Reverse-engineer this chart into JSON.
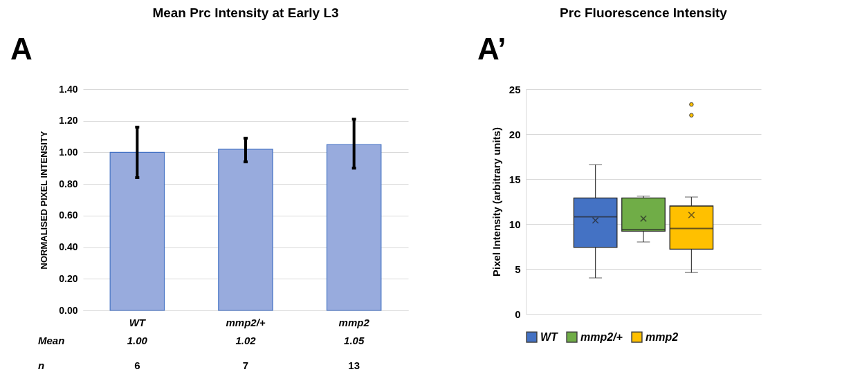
{
  "chart_data": [
    {
      "type": "bar",
      "title": "Mean Prc Intensity at Early L3",
      "ylabel": "NORMALISED PIXEL INTENSITY",
      "categories": [
        "WT",
        "mmp2/+",
        "mmp2"
      ],
      "values": [
        1.0,
        1.02,
        1.05
      ],
      "color": "#98abdd",
      "errors": [
        0.16,
        [
          0.94,
          1.09
        ],
        [
          0.9,
          1.21
        ]
      ],
      "value_labels": [
        "1.00",
        "1.02",
        "1.05"
      ],
      "ylim": [
        0,
        1.4
      ],
      "yticks": [
        {
          "value": 0,
          "label": "0.00"
        },
        {
          "value": 0.2,
          "label": "0.20"
        },
        {
          "value": 0.4,
          "label": "0.40"
        },
        {
          "value": 0.6,
          "label": "0.60"
        },
        {
          "value": 0.8,
          "label": "0.80"
        },
        {
          "value": 1.0,
          "label": "1.00"
        },
        {
          "value": 1.2,
          "label": "1.20"
        },
        {
          "value": 1.4,
          "label": "1.40"
        }
      ],
      "grid": "y",
      "annotations": [
        "A",
        "Mean",
        "n",
        "6",
        "7",
        "13"
      ]
    },
    {
      "type": "box",
      "title": "Prc Fluorescence Intensity",
      "ylabel": "Pixel Intensity (arbitrary units)",
      "categories": [
        null
      ],
      "series": [
        {
          "name": "WT",
          "color": "#4472c4",
          "boxes": [
            {
              "low": 4.0,
              "q1": 7.4,
              "median": 10.8,
              "q3": 12.9,
              "high": 16.6,
              "mean": 10.4
            }
          ]
        },
        {
          "name": "mmp2/+",
          "color": "#70ad47",
          "boxes": [
            {
              "low": 8.0,
              "q1": 9.2,
              "median": 9.4,
              "q3": 12.9,
              "high": 13.1,
              "mean": 10.6
            }
          ]
        },
        {
          "name": "mmp2",
          "color": "#ffc000",
          "boxes": [
            {
              "low": 4.6,
              "q1": 7.2,
              "median": 9.5,
              "q3": 12.0,
              "high": 13.0,
              "mean": 11.0,
              "outliers": [
                23.3,
                22.1
              ]
            }
          ]
        }
      ],
      "ylim": [
        0,
        25
      ],
      "yticks": [
        0,
        5,
        10,
        15,
        20,
        25
      ],
      "grid": "y",
      "legend": "bottom",
      "annotations": [
        "A’"
      ]
    }
  ]
}
